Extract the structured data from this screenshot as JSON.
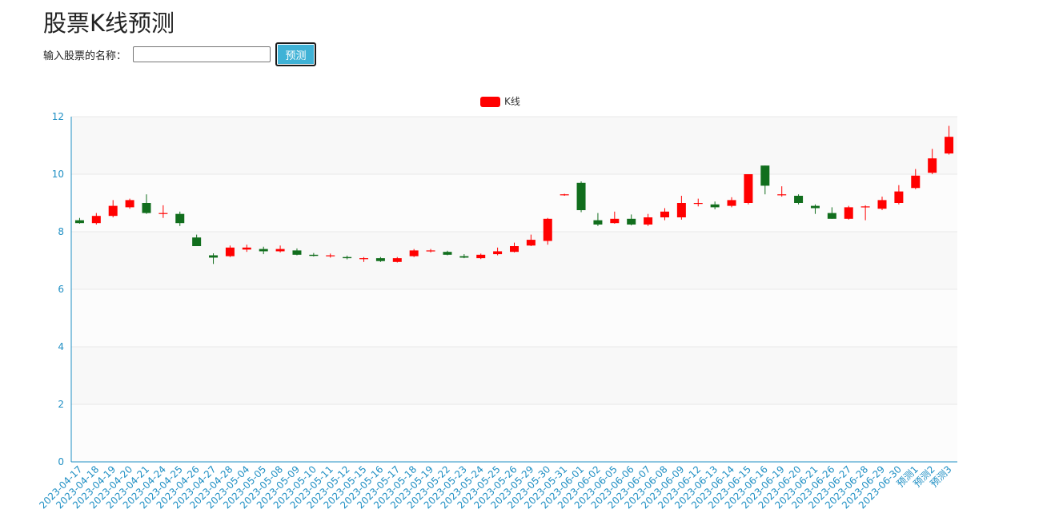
{
  "header": {
    "title": "股票K线预测"
  },
  "form": {
    "label": "输入股票的名称：",
    "input_value": "",
    "input_placeholder": "",
    "button_label": "预测"
  },
  "colors": {
    "rising": "#ff0000",
    "falling": "#116e1d",
    "axis": "#1f8fc4",
    "band_light": "#f8f8f8",
    "band_lighter": "#fcfcfc"
  },
  "chart_data": {
    "type": "candlestick",
    "legend": [
      "K线"
    ],
    "legend_position": "top-center",
    "grid": true,
    "ylim": [
      0,
      12
    ],
    "yticks": [
      0,
      2,
      4,
      6,
      8,
      10,
      12
    ],
    "categories": [
      "2023-04-17",
      "2023-04-18",
      "2023-04-19",
      "2023-04-20",
      "2023-04-21",
      "2023-04-24",
      "2023-04-25",
      "2023-04-26",
      "2023-04-27",
      "2023-04-28",
      "2023-05-04",
      "2023-05-05",
      "2023-05-08",
      "2023-05-09",
      "2023-05-10",
      "2023-05-11",
      "2023-05-12",
      "2023-05-15",
      "2023-05-16",
      "2023-05-17",
      "2023-05-18",
      "2023-05-19",
      "2023-05-22",
      "2023-05-23",
      "2023-05-24",
      "2023-05-25",
      "2023-05-26",
      "2023-05-29",
      "2023-05-30",
      "2023-05-31",
      "2023-06-01",
      "2023-06-02",
      "2023-06-05",
      "2023-06-06",
      "2023-06-07",
      "2023-06-08",
      "2023-06-09",
      "2023-06-12",
      "2023-06-13",
      "2023-06-14",
      "2023-06-15",
      "2023-06-16",
      "2023-06-19",
      "2023-06-20",
      "2023-06-21",
      "2023-06-26",
      "2023-06-27",
      "2023-06-28",
      "2023-06-29",
      "2023-06-30",
      "预测1",
      "预测2",
      "预测3"
    ],
    "open": [
      8.4,
      8.3,
      8.55,
      8.85,
      9.0,
      8.65,
      8.62,
      7.8,
      7.18,
      7.15,
      7.38,
      7.4,
      7.32,
      7.35,
      7.2,
      7.16,
      7.12,
      7.05,
      7.08,
      6.95,
      7.15,
      7.33,
      7.3,
      7.15,
      7.08,
      7.22,
      7.3,
      7.52,
      7.68,
      9.28,
      9.7,
      8.4,
      8.3,
      8.45,
      8.25,
      8.5,
      8.5,
      9.0,
      8.95,
      8.9,
      9.0,
      10.3,
      9.3,
      9.25,
      8.9,
      8.65,
      8.45,
      8.85,
      8.8,
      9.0,
      9.52,
      10.05,
      10.72
    ],
    "close": [
      8.3,
      8.55,
      8.9,
      9.1,
      8.65,
      8.65,
      8.3,
      7.5,
      7.1,
      7.45,
      7.45,
      7.32,
      7.4,
      7.2,
      7.16,
      7.18,
      7.08,
      7.08,
      6.98,
      7.08,
      7.35,
      7.35,
      7.2,
      7.1,
      7.2,
      7.32,
      7.5,
      7.72,
      8.45,
      9.3,
      8.75,
      8.25,
      8.45,
      8.25,
      8.5,
      8.7,
      9.0,
      9.0,
      8.85,
      9.1,
      10.0,
      9.6,
      9.3,
      9.0,
      8.82,
      8.45,
      8.85,
      8.88,
      9.1,
      9.4,
      9.95,
      10.55,
      11.3
    ],
    "low": [
      8.28,
      8.25,
      8.5,
      8.8,
      8.62,
      8.48,
      8.2,
      7.5,
      6.88,
      7.12,
      7.3,
      7.22,
      7.28,
      7.18,
      7.14,
      7.1,
      7.04,
      6.95,
      6.95,
      6.93,
      7.12,
      7.28,
      7.18,
      7.08,
      7.05,
      7.18,
      7.28,
      7.5,
      7.55,
      9.25,
      8.68,
      8.2,
      8.28,
      8.22,
      8.2,
      8.4,
      8.42,
      8.88,
      8.78,
      8.85,
      8.95,
      9.3,
      9.22,
      8.95,
      8.62,
      8.45,
      8.42,
      8.4,
      8.75,
      8.95,
      9.48,
      10.0,
      10.68
    ],
    "high": [
      8.48,
      8.65,
      9.1,
      9.15,
      9.3,
      8.92,
      8.7,
      7.9,
      7.25,
      7.52,
      7.55,
      7.48,
      7.52,
      7.42,
      7.26,
      7.24,
      7.17,
      7.12,
      7.12,
      7.12,
      7.4,
      7.4,
      7.34,
      7.22,
      7.24,
      7.45,
      7.62,
      7.9,
      8.48,
      9.32,
      9.75,
      8.65,
      8.7,
      8.6,
      8.62,
      8.82,
      9.25,
      9.15,
      9.05,
      9.2,
      10.0,
      10.3,
      9.58,
      9.3,
      8.95,
      8.85,
      8.9,
      8.92,
      9.22,
      9.62,
      10.18,
      10.88,
      11.68
    ]
  }
}
